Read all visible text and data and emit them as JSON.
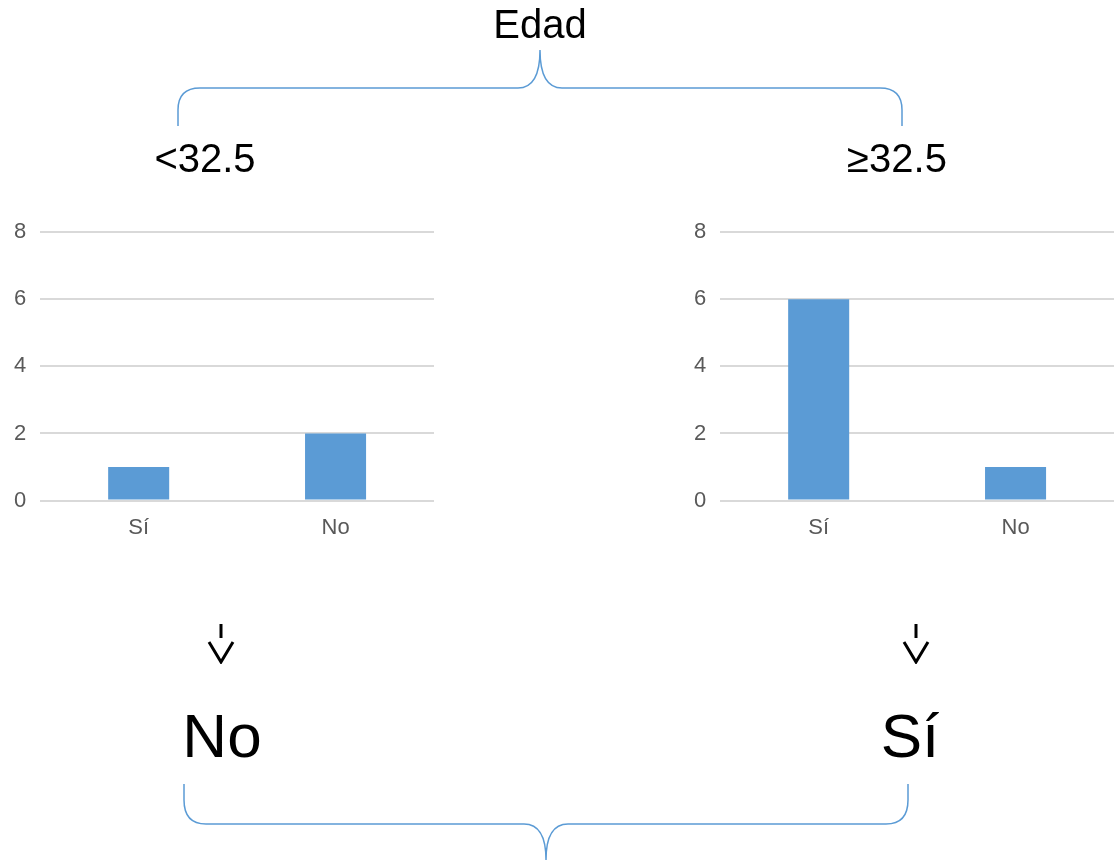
{
  "chart_data": [
    {
      "type": "other",
      "title": "Edad"
    },
    {
      "type": "bar",
      "title": "<32.5",
      "categories": [
        "Sí",
        "No"
      ],
      "values": [
        1,
        2
      ],
      "color": "#5b9bd5",
      "ylim": [
        0,
        8
      ],
      "yticks": [
        0,
        2,
        4,
        6,
        8
      ],
      "grid": "y",
      "annotations": [
        "No"
      ]
    },
    {
      "type": "bar",
      "title": "≥32.5",
      "categories": [
        "Sí",
        "No"
      ],
      "values": [
        6,
        1
      ],
      "color": "#5b9bd5",
      "ylim": [
        0,
        8
      ],
      "yticks": [
        0,
        2,
        4,
        6,
        8
      ],
      "grid": "y",
      "annotations": [
        "Sí"
      ]
    }
  ]
}
